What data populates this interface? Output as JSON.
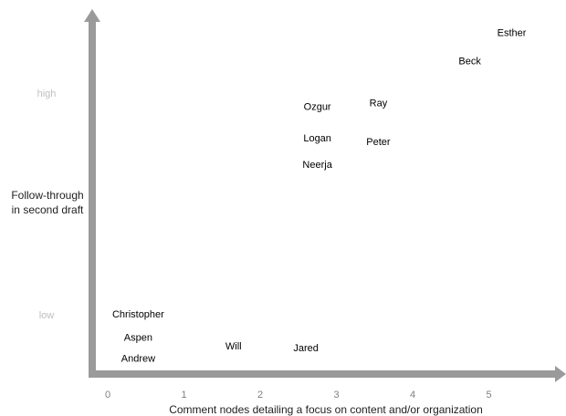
{
  "chart_data": {
    "type": "scatter",
    "title": "",
    "xlabel": "Comment nodes detailing a focus on content and/or organization",
    "ylabel": "Follow-through in second draft",
    "ylabel_lines": [
      "Follow-through",
      "in second draft"
    ],
    "x_ticks": [
      "0",
      "1",
      "2",
      "3",
      "4",
      "5"
    ],
    "y_ticks": [
      "low",
      "high"
    ],
    "xlim": [
      -0.2,
      5.9
    ],
    "ylim": [
      0,
      10
    ],
    "points": [
      {
        "label": "Esther",
        "x": 5.3,
        "y": 9.6
      },
      {
        "label": "Beck",
        "x": 4.75,
        "y": 8.8
      },
      {
        "label": "Ozgur",
        "x": 2.75,
        "y": 7.5
      },
      {
        "label": "Ray",
        "x": 3.55,
        "y": 7.6
      },
      {
        "label": "Logan",
        "x": 2.75,
        "y": 6.6
      },
      {
        "label": "Peter",
        "x": 3.55,
        "y": 6.5
      },
      {
        "label": "Neerja",
        "x": 2.75,
        "y": 5.85
      },
      {
        "label": "Christopher",
        "x": 0.4,
        "y": 1.6
      },
      {
        "label": "Aspen",
        "x": 0.4,
        "y": 0.95
      },
      {
        "label": "Will",
        "x": 1.65,
        "y": 0.7
      },
      {
        "label": "Jared",
        "x": 2.6,
        "y": 0.65
      },
      {
        "label": "Andrew",
        "x": 0.4,
        "y": 0.35
      }
    ],
    "grid": false,
    "legend": "none",
    "colors": {
      "axis": "#9a9a9a",
      "tick_text": "#7f7f7f",
      "label_text": "#000000",
      "y_tick_text": "#bfbfbf"
    }
  }
}
